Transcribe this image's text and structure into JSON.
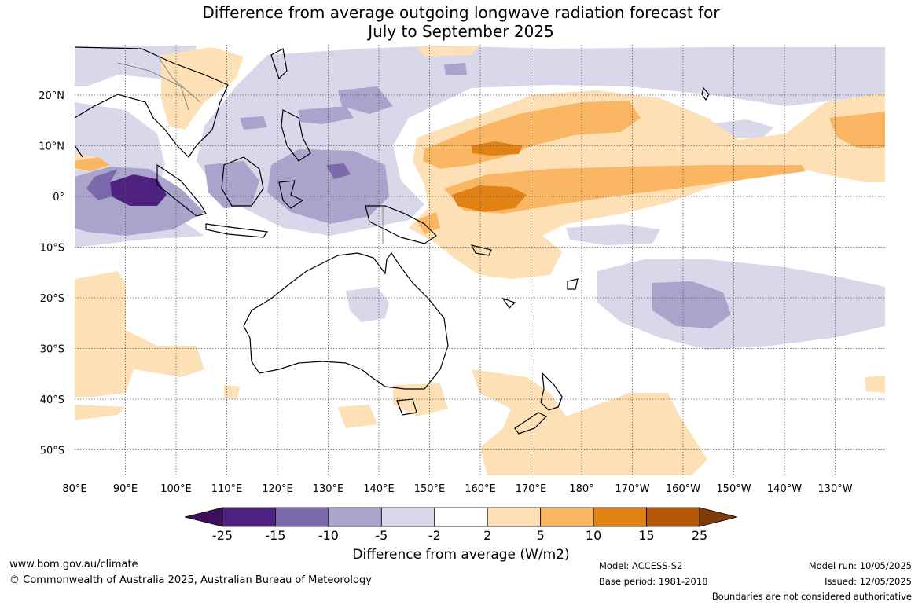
{
  "title": {
    "line1": "Difference from average outgoing longwave radiation forecast for",
    "line2": "July to September 2025"
  },
  "axes": {
    "lon_ticks": [
      "80°E",
      "90°E",
      "100°E",
      "110°E",
      "120°E",
      "130°E",
      "140°E",
      "150°E",
      "160°E",
      "170°E",
      "180°",
      "170°W",
      "160°W",
      "150°W",
      "140°W",
      "130°W"
    ],
    "lat_ticks": [
      "20°N",
      "10°N",
      "0°",
      "10°S",
      "20°S",
      "30°S",
      "40°S",
      "50°S"
    ]
  },
  "colorbar": {
    "label": "Difference from average (W/m2)",
    "tick_labels": [
      "-25",
      "-15",
      "-10",
      "-5",
      "-2",
      "2",
      "5",
      "10",
      "15",
      "25"
    ],
    "colors": [
      "#3d0e5a",
      "#4f2181",
      "#7a6aab",
      "#aaa4cc",
      "#d8d8ea",
      "#ffffff",
      "#fde0b6",
      "#fbb663",
      "#e08214",
      "#b35806",
      "#7f3b08"
    ]
  },
  "footer": {
    "website": "www.bom.gov.au/climate",
    "copyright": "© Commonwealth of Australia 2025, Australian Bureau of Meteorology",
    "model": "Model: ACCESS-S2",
    "base_period": "Base period: 1981-2018",
    "model_run": "Model run: 10/05/2025",
    "issued": "Issued: 12/05/2025",
    "disclaimer": "Boundaries are not considered authoritative"
  }
}
